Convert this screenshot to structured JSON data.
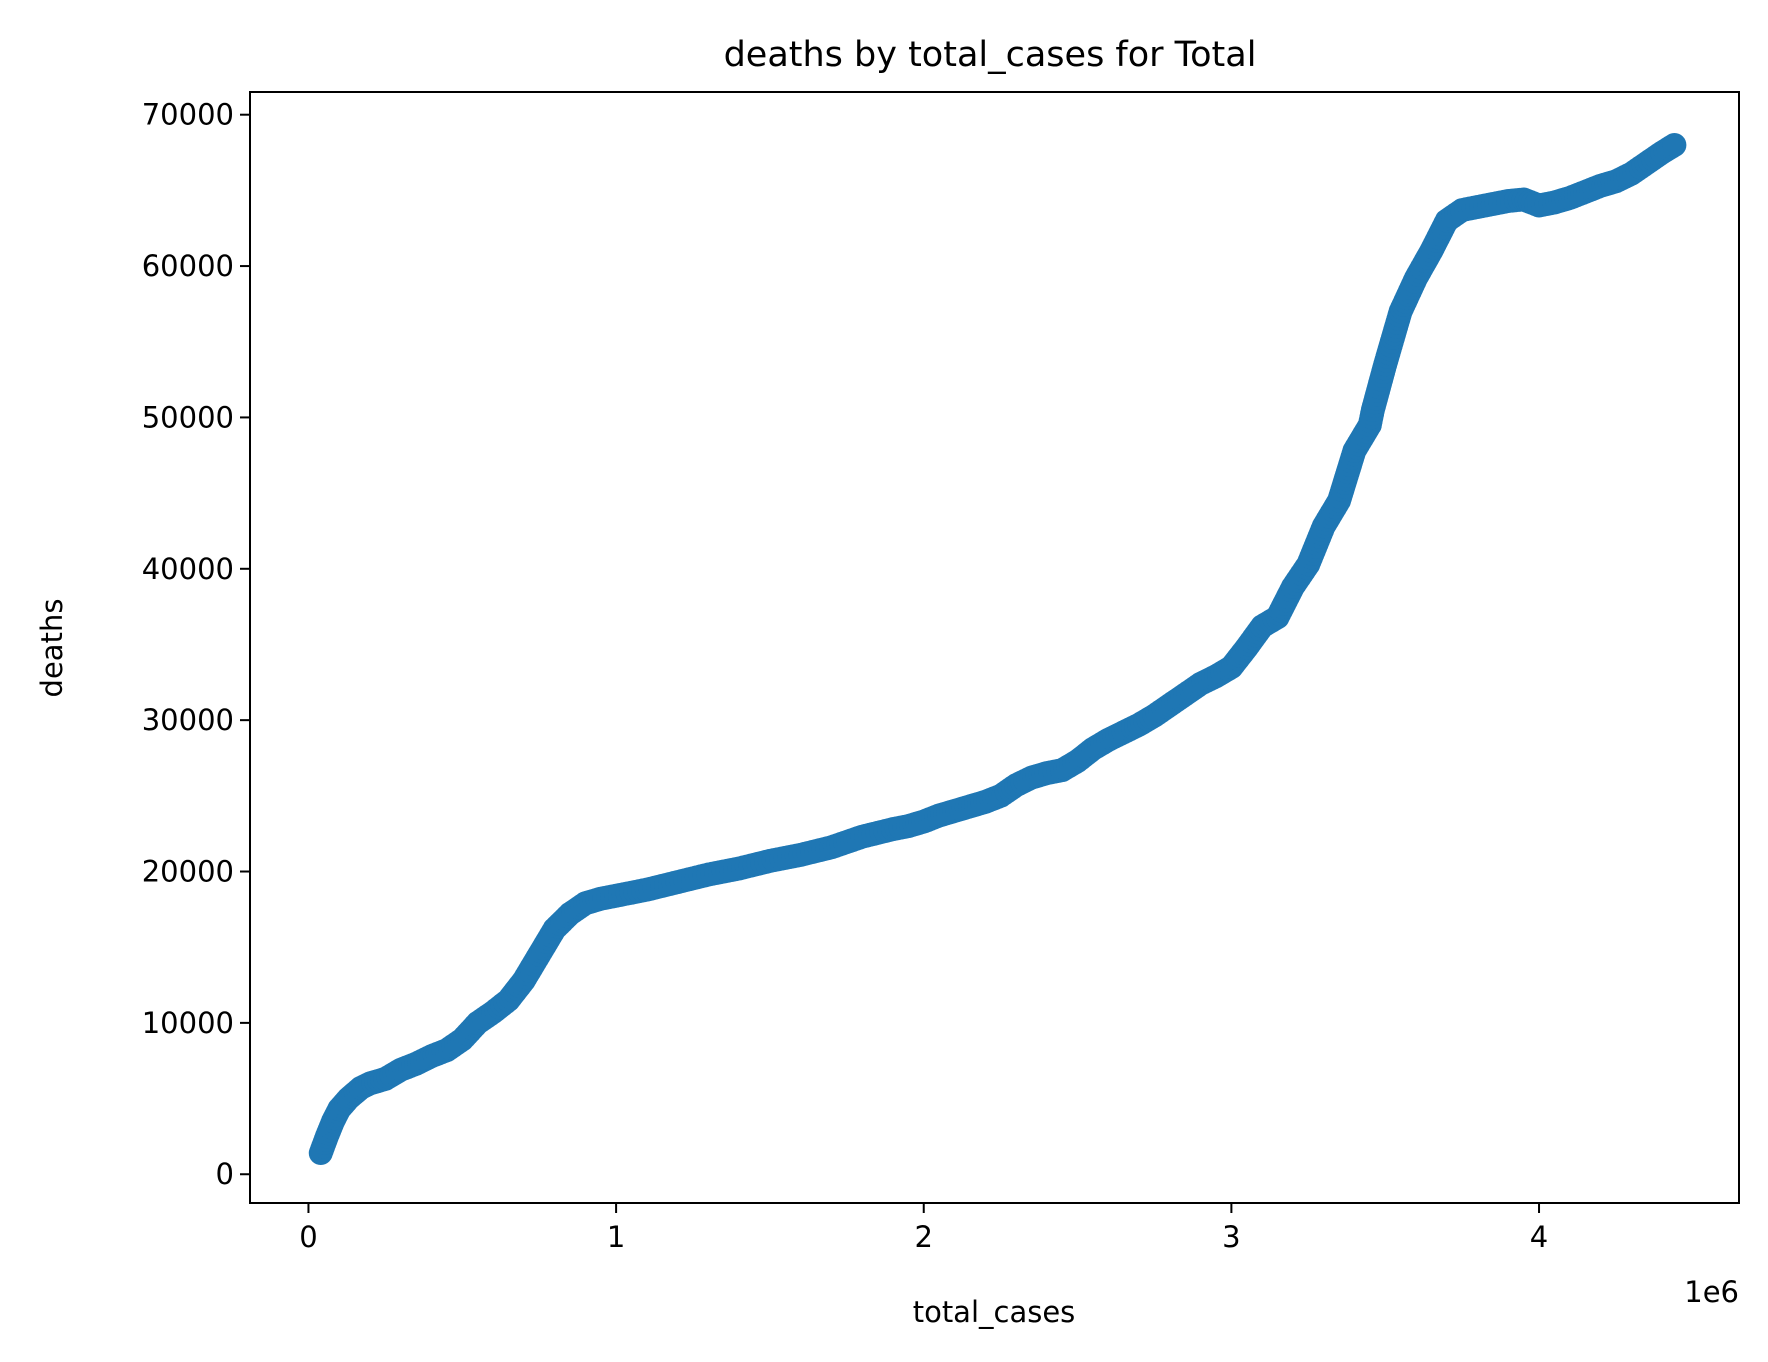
{
  "chart_data": {
    "type": "scatter",
    "title": "deaths by total_cases for Total",
    "xlabel": "total_cases",
    "ylabel": "deaths",
    "x_offset_label": "1e6",
    "xlim": [
      -190000,
      4650000
    ],
    "ylim": [
      -1900,
      71500
    ],
    "xticks": [
      0,
      1000000,
      2000000,
      3000000,
      4000000
    ],
    "xtick_labels": [
      "0",
      "1",
      "2",
      "3",
      "4"
    ],
    "yticks": [
      0,
      10000,
      20000,
      30000,
      40000,
      50000,
      60000,
      70000
    ],
    "ytick_labels": [
      "0",
      "10000",
      "20000",
      "30000",
      "40000",
      "50000",
      "60000",
      "70000"
    ],
    "grid": false,
    "legend": "none",
    "marker_color": "#1f77b4",
    "series": [
      {
        "x": [
          40000,
          60000,
          80000,
          100000,
          130000,
          170000,
          200000,
          250000,
          300000,
          350000,
          400000,
          450000,
          500000,
          550000,
          600000,
          650000,
          700000,
          750000,
          800000,
          850000,
          900000,
          950000,
          1000000,
          1100000,
          1200000,
          1300000,
          1400000,
          1500000,
          1600000,
          1700000,
          1800000,
          1900000,
          1950000,
          2000000,
          2050000,
          2100000,
          2150000,
          2200000,
          2250000,
          2300000,
          2350000,
          2400000,
          2450000,
          2500000,
          2550000,
          2600000,
          2650000,
          2700000,
          2750000,
          2800000,
          2850000,
          2900000,
          2950000,
          3000000,
          3050000,
          3100000,
          3150000,
          3200000,
          3250000,
          3300000,
          3350000,
          3400000,
          3450000,
          3460000,
          3500000,
          3550000,
          3600000,
          3650000,
          3700000,
          3750000,
          3800000,
          3850000,
          3900000,
          3950000,
          4000000,
          4050000,
          4100000,
          4150000,
          4200000,
          4250000,
          4300000,
          4350000,
          4400000,
          4440000
        ],
        "y": [
          1400,
          2500,
          3500,
          4300,
          5000,
          5700,
          6000,
          6300,
          6900,
          7300,
          7800,
          8200,
          8900,
          10000,
          10700,
          11500,
          12800,
          14500,
          16200,
          17200,
          17900,
          18200,
          18400,
          18800,
          19300,
          19800,
          20200,
          20700,
          21100,
          21600,
          22300,
          22800,
          23000,
          23300,
          23700,
          24000,
          24300,
          24600,
          25000,
          25700,
          26200,
          26500,
          26700,
          27300,
          28100,
          28700,
          29200,
          29700,
          30300,
          31000,
          31700,
          32400,
          32900,
          33500,
          34800,
          36200,
          36800,
          38800,
          40300,
          42800,
          44500,
          47800,
          49500,
          50500,
          53500,
          57000,
          59200,
          61000,
          63000,
          63700,
          63900,
          64100,
          64300,
          64400,
          64000,
          64200,
          64500,
          64900,
          65300,
          65600,
          66100,
          66800,
          67500,
          68000
        ]
      }
    ]
  }
}
